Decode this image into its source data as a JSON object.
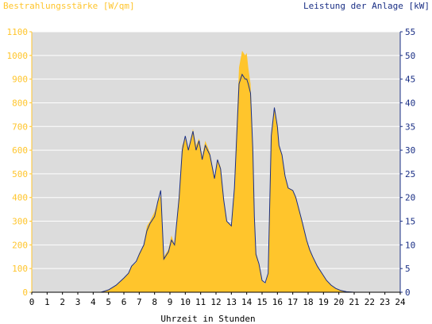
{
  "chart_data": {
    "type": "area",
    "left_axis_title": "Bestrahlungsstärke [W/qm]",
    "right_axis_title": "Leistung der Anlage [kW]",
    "xlabel": "Uhrzeit in Stunden",
    "x_ticks": [
      "0",
      "1",
      "2",
      "3",
      "4",
      "5",
      "6",
      "7",
      "8",
      "9",
      "10",
      "11",
      "12",
      "13",
      "14",
      "15",
      "16",
      "17",
      "18",
      "19",
      "20",
      "21",
      "22",
      "23",
      "24"
    ],
    "y_left_ticks": [
      "0",
      "100",
      "200",
      "300",
      "400",
      "500",
      "600",
      "700",
      "800",
      "900",
      "1000",
      "1100"
    ],
    "y_right_ticks": [
      "0",
      "5",
      "10",
      "15",
      "20",
      "25",
      "30",
      "35",
      "40",
      "45",
      "50",
      "55"
    ],
    "xlim": [
      0,
      24
    ],
    "ylim_left": [
      0,
      1100
    ],
    "ylim_right": [
      0,
      55
    ],
    "grid": "horizontal",
    "legend": "none",
    "series": [
      {
        "axis": "left",
        "style": "filled-area",
        "x": [
          0,
          4.5,
          5,
          5.5,
          6,
          6.3,
          6.5,
          6.8,
          7,
          7.3,
          7.5,
          7.7,
          8,
          8.2,
          8.4,
          8.6,
          8.8,
          8.9,
          9.1,
          9.3,
          9.6,
          9.8,
          10,
          10.2,
          10.5,
          10.7,
          10.9,
          11.1,
          11.3,
          11.6,
          11.9,
          12.1,
          12.3,
          12.5,
          12.7,
          13,
          13.2,
          13.5,
          13.7,
          13.9,
          14,
          14.1,
          14.25,
          14.4,
          14.5,
          14.6,
          14.8,
          15,
          15.2,
          15.4,
          15.6,
          15.8,
          16,
          16.1,
          16.3,
          16.5,
          16.7,
          17,
          17.2,
          17.4,
          17.6,
          17.9,
          18.1,
          18.3,
          18.6,
          18.9,
          19.2,
          19.5,
          19.8,
          20.1,
          20.5,
          21,
          24
        ],
        "y": [
          0,
          0,
          10,
          30,
          60,
          80,
          110,
          125,
          165,
          200,
          280,
          300,
          340,
          380,
          410,
          150,
          170,
          180,
          240,
          200,
          420,
          620,
          650,
          600,
          690,
          620,
          650,
          570,
          640,
          590,
          480,
          560,
          530,
          390,
          300,
          280,
          450,
          950,
          1020,
          1000,
          1010,
          950,
          880,
          620,
          330,
          170,
          120,
          50,
          35,
          80,
          660,
          780,
          700,
          620,
          580,
          490,
          440,
          430,
          400,
          350,
          300,
          220,
          180,
          150,
          110,
          80,
          50,
          30,
          15,
          8,
          2,
          0,
          0
        ]
      },
      {
        "axis": "right",
        "style": "line",
        "color": "#1a2f85",
        "x": [
          0,
          4.5,
          5,
          5.5,
          6,
          6.3,
          6.5,
          6.8,
          7,
          7.3,
          7.5,
          7.7,
          8,
          8.2,
          8.4,
          8.6,
          8.8,
          8.9,
          9.1,
          9.3,
          9.6,
          9.8,
          10,
          10.2,
          10.5,
          10.7,
          10.9,
          11.1,
          11.3,
          11.6,
          11.9,
          12.1,
          12.3,
          12.5,
          12.7,
          13,
          13.2,
          13.5,
          13.7,
          13.9,
          14,
          14.1,
          14.25,
          14.4,
          14.5,
          14.6,
          14.8,
          15,
          15.2,
          15.4,
          15.6,
          15.8,
          16,
          16.1,
          16.3,
          16.5,
          16.7,
          17,
          17.2,
          17.4,
          17.6,
          17.9,
          18.1,
          18.3,
          18.6,
          18.9,
          19.2,
          19.5,
          19.8,
          20.1,
          20.5,
          21,
          24
        ],
        "y": [
          0,
          0,
          0.5,
          1.5,
          3,
          4,
          5.5,
          6.5,
          8,
          10,
          13,
          14.5,
          16,
          19,
          21.5,
          7,
          8,
          8.5,
          11,
          10,
          20,
          30,
          33,
          30,
          34,
          30,
          32,
          28,
          31,
          29,
          24,
          28,
          26,
          19.5,
          15,
          14,
          22,
          44,
          46,
          45,
          45,
          44,
          42,
          30,
          16,
          8,
          6,
          2.5,
          2,
          4,
          33,
          39,
          35,
          31,
          29,
          24.5,
          22,
          21.5,
          20,
          17.5,
          15,
          11,
          9,
          7.5,
          5.5,
          4,
          2.5,
          1.5,
          0.8,
          0.4,
          0.1,
          0,
          0
        ]
      }
    ]
  },
  "colors": {
    "fill": "#ffc52c",
    "line": "#1a2f85",
    "plot_bg": "#dcdcdc",
    "left_axis_text": "#ffc52c",
    "right_axis_text": "#1a2f85",
    "grid": "#ffffff"
  }
}
